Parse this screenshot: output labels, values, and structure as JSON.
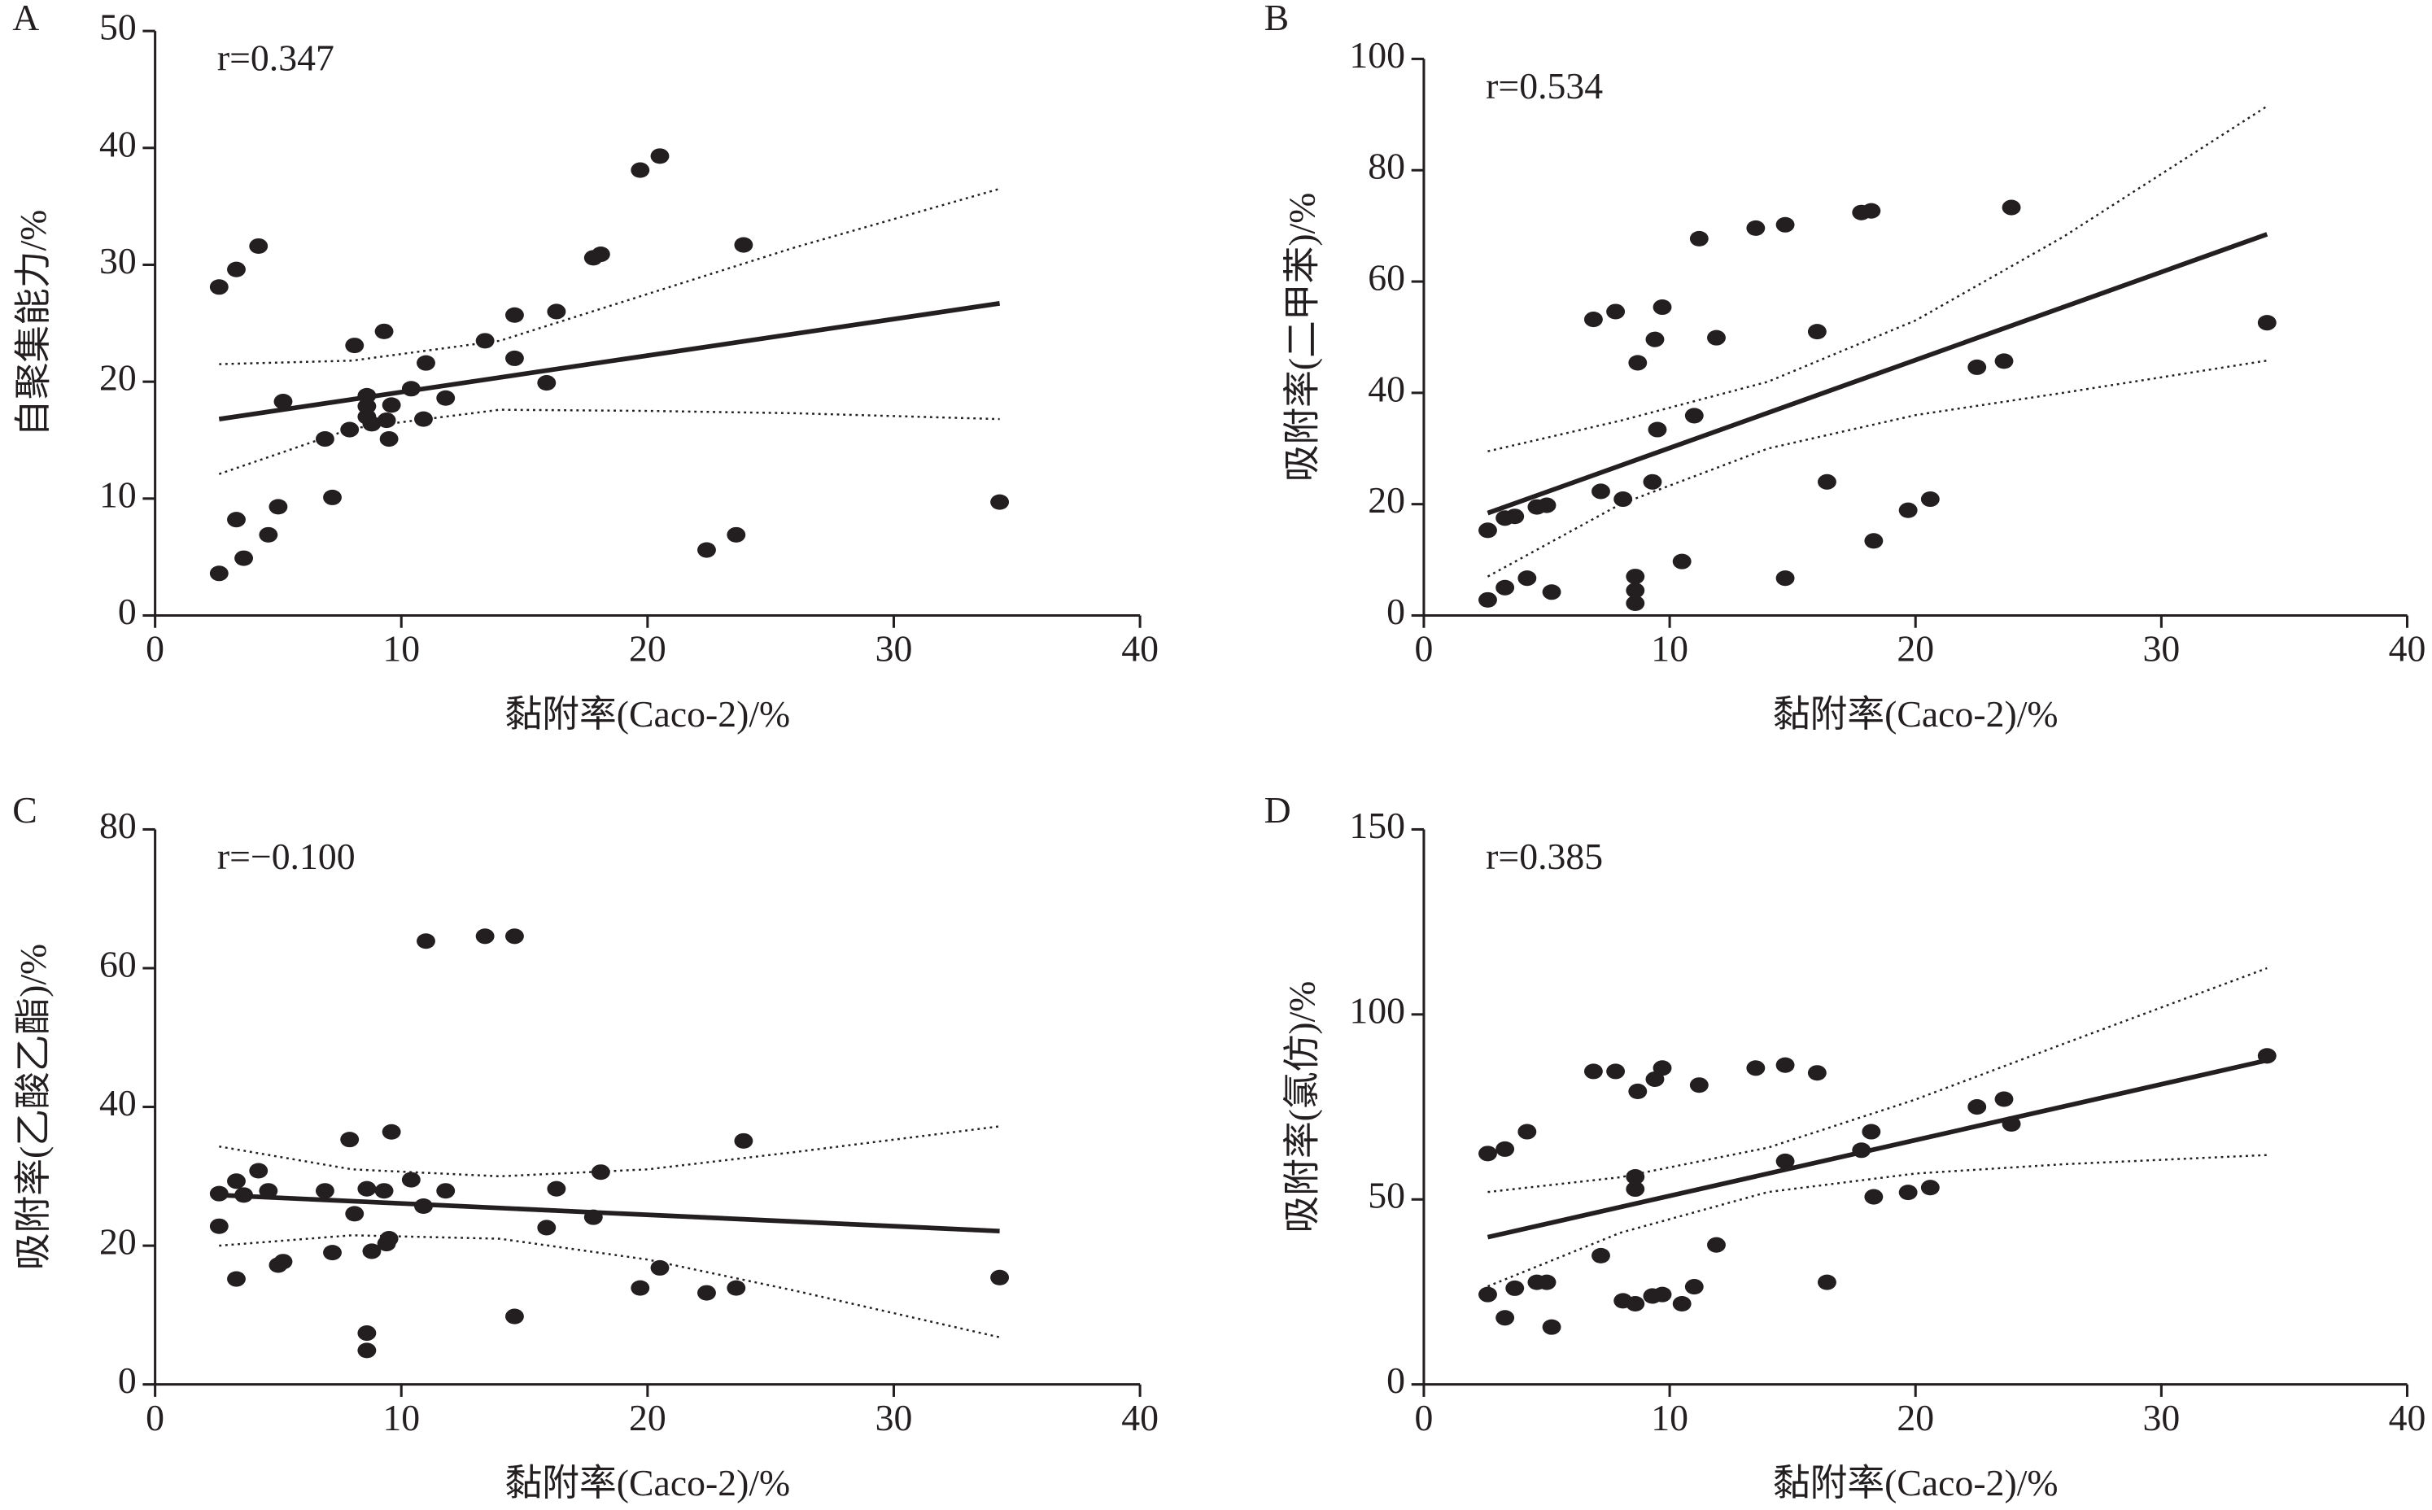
{
  "chart_data": [
    {
      "type": "scatter",
      "panel_label": "A",
      "annotation": "r=0.347",
      "x_label": "黏附率(Caco-2)/%",
      "y_label": "自聚集能力/%",
      "xlim": [
        0,
        40
      ],
      "xticks": [
        0,
        10,
        20,
        30,
        40
      ],
      "ylim": [
        0,
        50
      ],
      "yticks": [
        0,
        10,
        20,
        30,
        40,
        50
      ],
      "color": "#231f20",
      "x": [
        2.6,
        3.3,
        4.2,
        2.6,
        3.3,
        3.6,
        4.6,
        5.0,
        5.2,
        6.9,
        7.2,
        7.9,
        8.1,
        8.6,
        8.6,
        8.6,
        8.8,
        9.3,
        9.4,
        9.5,
        9.6,
        10.4,
        11.0,
        10.9,
        11.8,
        13.4,
        14.6,
        14.6,
        15.9,
        16.3,
        17.8,
        18.1,
        19.7,
        20.5,
        22.4,
        23.6,
        23.9,
        34.3
      ],
      "y": [
        28.1,
        29.6,
        31.6,
        3.6,
        8.2,
        4.9,
        6.9,
        9.3,
        18.3,
        15.1,
        10.1,
        15.9,
        23.1,
        18.8,
        17.9,
        17.0,
        16.4,
        24.3,
        16.7,
        15.1,
        18.0,
        19.4,
        21.6,
        16.8,
        18.6,
        23.5,
        25.7,
        22.0,
        19.9,
        26.0,
        30.6,
        30.9,
        38.1,
        39.3,
        5.6,
        6.9,
        31.7,
        9.7
      ],
      "fit_x": [
        2.6,
        34.3
      ],
      "fit_y": [
        16.8,
        26.7
      ],
      "ci_x": [
        2.6,
        8,
        14,
        20,
        26,
        34.3
      ],
      "ci_upper": [
        21.5,
        21.8,
        23.5,
        27.5,
        31.5,
        36.5
      ],
      "ci_lower": [
        12.1,
        16.0,
        17.6,
        17.5,
        17.3,
        16.8
      ]
    },
    {
      "type": "scatter",
      "panel_label": "B",
      "annotation": "r=0.534",
      "x_label": "黏附率(Caco-2)/%",
      "y_label": "吸附率(二甲苯)/%",
      "xlim": [
        0,
        40
      ],
      "xticks": [
        0,
        10,
        20,
        30,
        40
      ],
      "ylim": [
        0,
        100
      ],
      "yticks": [
        0,
        20,
        40,
        60,
        80,
        100
      ],
      "color": "#231f20",
      "x": [
        2.6,
        2.6,
        3.3,
        3.7,
        3.3,
        4.2,
        4.6,
        5.0,
        5.2,
        6.9,
        7.2,
        7.8,
        8.1,
        8.7,
        8.6,
        8.6,
        8.6,
        9.4,
        9.7,
        9.5,
        9.3,
        10.5,
        11.0,
        11.2,
        11.9,
        13.5,
        14.7,
        14.7,
        16.0,
        16.4,
        17.8,
        18.2,
        18.3,
        19.7,
        20.6,
        22.5,
        23.6,
        23.9,
        34.3
      ],
      "y": [
        15.3,
        2.8,
        17.5,
        17.8,
        5.0,
        6.7,
        19.5,
        19.8,
        4.2,
        53.2,
        22.3,
        54.6,
        20.9,
        45.4,
        7.0,
        4.5,
        2.2,
        49.6,
        55.4,
        33.4,
        24.0,
        9.7,
        35.9,
        67.7,
        49.9,
        69.6,
        70.2,
        6.7,
        51.0,
        24.0,
        72.4,
        72.7,
        13.4,
        18.9,
        20.9,
        44.6,
        45.7,
        73.3,
        52.6
      ],
      "fit_x": [
        2.6,
        34.3
      ],
      "fit_y": [
        18.4,
        68.5
      ],
      "ci_x": [
        2.6,
        8,
        14,
        20,
        26,
        34.3
      ],
      "ci_upper": [
        29.5,
        35,
        42,
        53,
        68,
        91.5
      ],
      "ci_lower": [
        7.0,
        20,
        30,
        36,
        40,
        45.8
      ]
    },
    {
      "type": "scatter",
      "panel_label": "C",
      "annotation": "r=−0.100",
      "x_label": "黏附率(Caco-2)/%",
      "y_label": "吸附率(乙酸乙酯)/%",
      "xlim": [
        0,
        40
      ],
      "xticks": [
        0,
        10,
        20,
        30,
        40
      ],
      "ylim": [
        0,
        80
      ],
      "yticks": [
        0,
        20,
        40,
        60,
        80
      ],
      "color": "#231f20",
      "x": [
        2.6,
        2.6,
        3.3,
        3.6,
        4.2,
        4.6,
        3.3,
        5.0,
        5.2,
        6.9,
        7.2,
        7.9,
        8.1,
        8.6,
        8.6,
        8.6,
        8.8,
        9.3,
        9.4,
        9.5,
        9.6,
        10.4,
        11.0,
        10.9,
        11.8,
        13.4,
        14.6,
        14.6,
        15.9,
        16.3,
        17.8,
        18.1,
        19.7,
        20.5,
        22.4,
        23.6,
        23.9,
        34.3
      ],
      "y": [
        27.5,
        22.8,
        29.3,
        27.3,
        30.8,
        27.9,
        15.2,
        17.2,
        17.7,
        27.9,
        19.0,
        35.3,
        24.6,
        28.2,
        7.4,
        4.9,
        19.2,
        27.9,
        20.3,
        21.0,
        36.4,
        29.5,
        63.9,
        25.7,
        27.9,
        64.6,
        64.6,
        9.8,
        22.6,
        28.2,
        24.1,
        30.6,
        13.9,
        16.8,
        13.2,
        13.9,
        35.1,
        15.4
      ],
      "fit_x": [
        2.6,
        34.3
      ],
      "fit_y": [
        27.3,
        22.1
      ],
      "ci_x": [
        2.6,
        8,
        14,
        20,
        26,
        34.3
      ],
      "ci_upper": [
        34.3,
        31,
        30,
        31,
        33.5,
        37.2
      ],
      "ci_lower": [
        20.0,
        21.5,
        21,
        18,
        13.5,
        6.8
      ]
    },
    {
      "type": "scatter",
      "panel_label": "D",
      "annotation": "r=0.385",
      "x_label": "黏附率(Caco-2)/%",
      "y_label": "吸附率(氯仿)/%",
      "xlim": [
        0,
        40
      ],
      "xticks": [
        0,
        10,
        20,
        30,
        40
      ],
      "ylim": [
        0,
        150
      ],
      "yticks": [
        0,
        50,
        100,
        150
      ],
      "color": "#231f20",
      "x": [
        2.6,
        2.6,
        3.3,
        3.3,
        3.7,
        4.2,
        4.6,
        5.0,
        5.2,
        6.9,
        7.2,
        7.8,
        8.1,
        8.6,
        8.7,
        8.6,
        8.6,
        9.4,
        9.7,
        9.3,
        9.7,
        10.5,
        11.0,
        11.2,
        11.9,
        13.5,
        14.7,
        14.7,
        16.0,
        16.4,
        17.8,
        18.2,
        18.3,
        19.7,
        20.6,
        22.5,
        23.6,
        23.9,
        34.3
      ],
      "y": [
        24.3,
        62.4,
        18.0,
        63.6,
        26.0,
        68.3,
        27.6,
        27.6,
        15.5,
        84.6,
        34.8,
        84.6,
        22.6,
        21.8,
        79.2,
        56.1,
        52.8,
        82.5,
        85.5,
        23.9,
        24.3,
        21.8,
        26.4,
        80.9,
        37.7,
        85.5,
        86.3,
        60.3,
        84.2,
        27.6,
        63.3,
        68.3,
        50.7,
        51.9,
        53.2,
        75.0,
        77.1,
        70.4,
        88.8
      ],
      "fit_x": [
        2.6,
        34.3
      ],
      "fit_y": [
        39.8,
        87.6
      ],
      "ci_x": [
        2.6,
        8,
        14,
        20,
        26,
        34.3
      ],
      "ci_upper": [
        52,
        56,
        64,
        77,
        92,
        112.5
      ],
      "ci_lower": [
        26.5,
        41,
        52,
        57,
        59.5,
        62
      ]
    }
  ]
}
